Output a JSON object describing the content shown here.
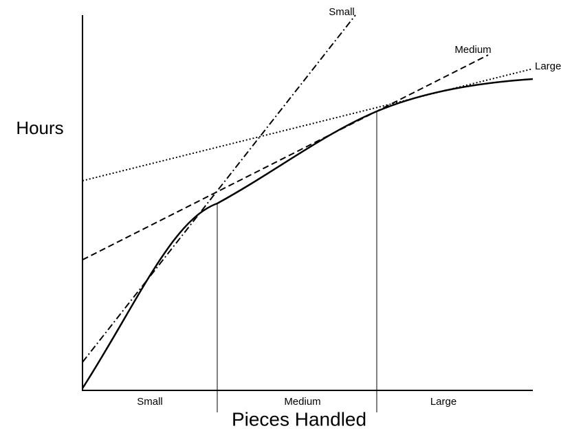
{
  "axes": {
    "y_label": "Hours",
    "x_label": "Pieces Handled"
  },
  "lines": [
    {
      "label": "Small"
    },
    {
      "label": "Medium"
    },
    {
      "label": "Large"
    }
  ],
  "regions": [
    {
      "label": "Small"
    },
    {
      "label": "Medium"
    },
    {
      "label": "Large"
    }
  ]
}
